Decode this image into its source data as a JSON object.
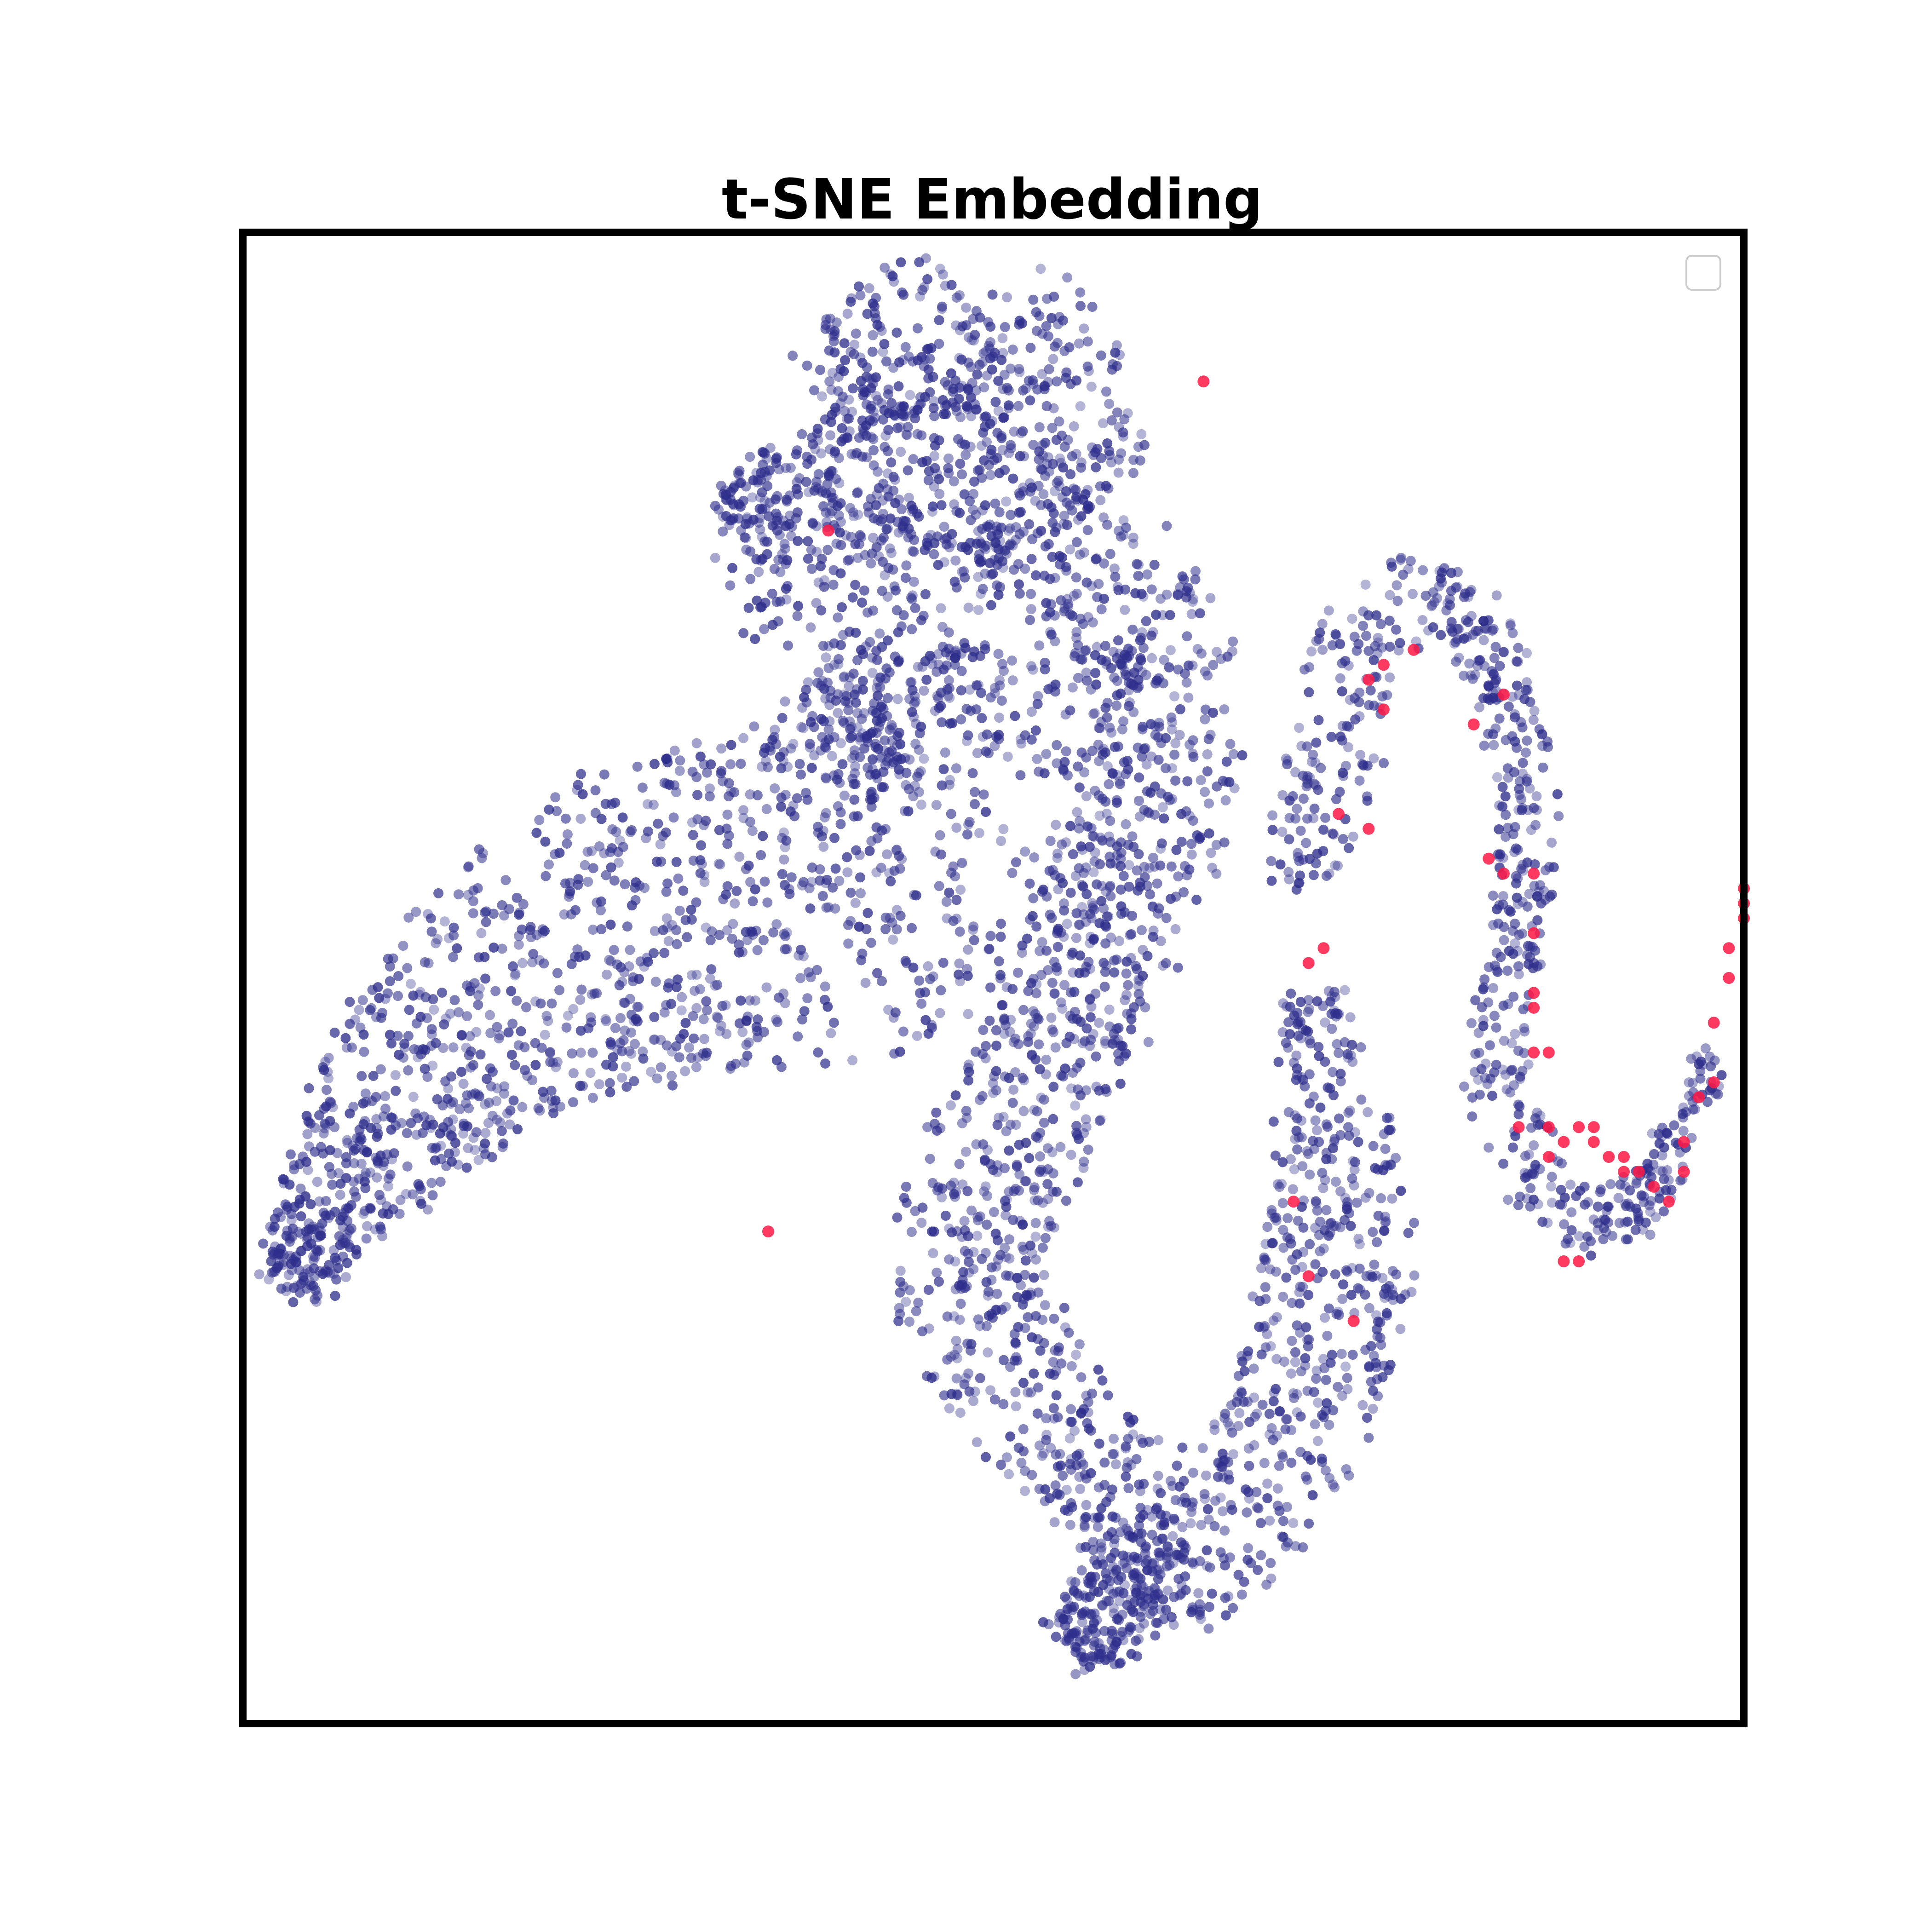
{
  "chart_data": {
    "type": "scatter",
    "title": "t-SNE Embedding",
    "xlabel": "",
    "ylabel": "",
    "xlim": [
      0,
      100
    ],
    "ylim": [
      0,
      100
    ],
    "grid": false,
    "axes_ticks": false,
    "legend": {
      "placement": "top-right",
      "entries": []
    },
    "colors": {
      "background_points": "#2e2e8c",
      "highlight_points": "#ff1744",
      "frame": "#000000"
    },
    "series": [
      {
        "name": "",
        "role": "background",
        "clusters": [
          {
            "path": [
              [
                3,
                29
              ],
              [
                6,
                35
              ],
              [
                10,
                41
              ],
              [
                16,
                47
              ],
              [
                22,
                52
              ],
              [
                28,
                54
              ],
              [
                33,
                55
              ],
              [
                38,
                56
              ],
              [
                43,
                58
              ],
              [
                47,
                60
              ],
              [
                49,
                63
              ],
              [
                49,
                68
              ],
              [
                49,
                72
              ],
              [
                45,
                74
              ],
              [
                40,
                76
              ],
              [
                37,
                79
              ],
              [
                35,
                82
              ],
              [
                33,
                84
              ]
            ],
            "width": [
              2,
              4,
              6,
              8,
              10,
              11,
              11,
              12,
              12,
              12,
              11,
              11,
              10,
              9,
              7,
              6,
              4,
              2
            ],
            "count": 1900
          },
          {
            "path": [
              [
                58,
                83
              ],
              [
                55,
                86
              ],
              [
                52,
                91
              ],
              [
                49,
                95
              ],
              [
                45,
                93
              ],
              [
                42,
                90
              ],
              [
                39,
                88
              ],
              [
                42,
                85
              ],
              [
                46,
                84
              ],
              [
                51,
                82
              ],
              [
                54,
                80
              ],
              [
                58,
                76
              ],
              [
                61,
                72
              ],
              [
                62,
                67
              ],
              [
                61,
                62
              ],
              [
                59,
                57
              ],
              [
                57,
                52
              ],
              [
                55,
                47
              ],
              [
                53,
                42
              ],
              [
                50,
                37
              ],
              [
                48,
                32
              ],
              [
                49,
                27
              ],
              [
                52,
                22
              ],
              [
                56,
                18
              ],
              [
                60,
                13
              ],
              [
                58,
                8
              ],
              [
                55,
                5
              ]
            ],
            "width": [
              3,
              5,
              6,
              6,
              5,
              5,
              4,
              4,
              5,
              5,
              5,
              5,
              5,
              5,
              5,
              5,
              5,
              5,
              5,
              5,
              5,
              5,
              5,
              5,
              4,
              3,
              2
            ],
            "count": 1800
          },
          {
            "path": [
              [
                55,
                5
              ],
              [
                61,
                9
              ],
              [
                66,
                14
              ],
              [
                70,
                20
              ],
              [
                72,
                26
              ],
              [
                73,
                32
              ],
              [
                73,
                38
              ],
              [
                72,
                44
              ],
              [
                71,
                49
              ]
            ],
            "width": [
              2,
              4,
              5,
              5,
              5,
              5,
              4,
              3,
              2
            ],
            "count": 650
          },
          {
            "path": [
              [
                71,
                56
              ],
              [
                72,
                62
              ],
              [
                73,
                68
              ],
              [
                75,
                73
              ],
              [
                78,
                76
              ],
              [
                80,
                77
              ],
              [
                82,
                74
              ],
              [
                84,
                69
              ],
              [
                85,
                64
              ],
              [
                86,
                60
              ],
              [
                85,
                55
              ],
              [
                84,
                48
              ],
              [
                84,
                42
              ],
              [
                86,
                38
              ],
              [
                88,
                34
              ],
              [
                91,
                33
              ],
              [
                94,
                36
              ],
              [
                96,
                40
              ],
              [
                98,
                45
              ]
            ],
            "width": [
              2,
              3,
              3,
              3,
              3,
              2,
              2,
              2,
              2,
              2,
              2,
              2,
              2,
              2,
              2,
              2,
              1.5,
              1.5,
              1
            ],
            "count": 650
          }
        ]
      },
      {
        "name": "",
        "role": "highlight",
        "points": [
          [
            64,
            90
          ],
          [
            39,
            80
          ],
          [
            35,
            33
          ],
          [
            74,
            27
          ],
          [
            71,
            30
          ],
          [
            70,
            35
          ],
          [
            73,
            61
          ],
          [
            72,
            52
          ],
          [
            75,
            60
          ],
          [
            75,
            70
          ],
          [
            76,
            71
          ],
          [
            78,
            72
          ],
          [
            82,
            67
          ],
          [
            84,
            69
          ],
          [
            83,
            58
          ],
          [
            84,
            57
          ],
          [
            86,
            57
          ],
          [
            86,
            53
          ],
          [
            86,
            49
          ],
          [
            86,
            48
          ],
          [
            86,
            45
          ],
          [
            87,
            45
          ],
          [
            87,
            40
          ],
          [
            88,
            39
          ],
          [
            89,
            40
          ],
          [
            90,
            39
          ],
          [
            91,
            38
          ],
          [
            92,
            37
          ],
          [
            93,
            37
          ],
          [
            94,
            36
          ],
          [
            95,
            35
          ],
          [
            96,
            37
          ],
          [
            96,
            39
          ],
          [
            97,
            42
          ],
          [
            98,
            43
          ],
          [
            98,
            47
          ],
          [
            99,
            50
          ],
          [
            99,
            52
          ],
          [
            100,
            54
          ],
          [
            100,
            55
          ],
          [
            100,
            56
          ],
          [
            89,
            31
          ],
          [
            88,
            31
          ],
          [
            85,
            40
          ],
          [
            87,
            38
          ],
          [
            90,
            40
          ],
          [
            92,
            38
          ],
          [
            76,
            68
          ],
          [
            71,
            51
          ]
        ]
      }
    ]
  }
}
